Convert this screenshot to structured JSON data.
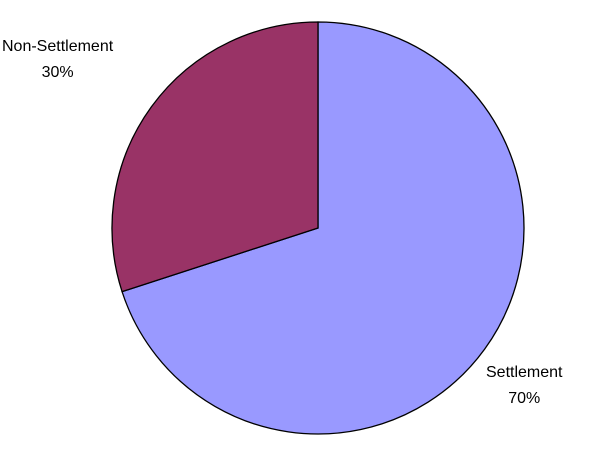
{
  "chart_data": {
    "type": "pie",
    "title": "",
    "slices": [
      {
        "label": "Settlement",
        "percent_label": "70%",
        "value": 70,
        "color": "#9999ff"
      },
      {
        "label": "Non-Settlement",
        "percent_label": "30%",
        "value": 30,
        "color": "#993366"
      }
    ],
    "start_angle_deg": 0,
    "direction": "clockwise",
    "outline_color": "#000000",
    "legend": "none"
  }
}
